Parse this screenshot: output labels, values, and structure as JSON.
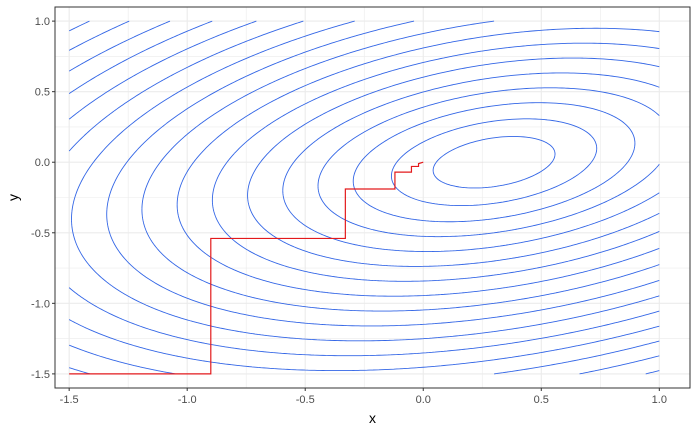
{
  "chart_data": {
    "type": "line",
    "xlabel": "x",
    "ylabel": "y",
    "xlim": [
      -1.56,
      1.13
    ],
    "ylim": [
      -1.6,
      1.1
    ],
    "x_ticks": [
      -1.5,
      -1.0,
      -0.5,
      0.0,
      0.5,
      1.0
    ],
    "y_ticks": [
      -1.5,
      -1.0,
      -0.5,
      0.0,
      0.5,
      1.0
    ],
    "x_tick_labels": [
      "-1.5",
      "-1.0",
      "-0.5",
      "0.0",
      "0.5",
      "1.0"
    ],
    "y_tick_labels": [
      "-1.5",
      "-1.0",
      "-0.5",
      "0.0",
      "0.5",
      "1.0"
    ],
    "grid": true,
    "legend": "none",
    "contour": {
      "description_fn": "f(x,y) = (x - 0.3)^2 - 0.9*(x - 0.3)*y + 2*y^2",
      "domain_x": [
        -1.5,
        1.0
      ],
      "domain_y": [
        -1.5,
        1.0
      ],
      "levels": [
        0.06,
        0.17,
        0.32,
        0.5,
        0.72,
        0.98,
        1.28,
        1.62,
        2.0,
        2.42,
        2.88,
        3.38,
        3.92,
        4.5,
        5.12,
        5.78,
        6.48,
        7.22,
        8.0,
        8.82,
        9.68
      ],
      "color": "#3366e6"
    },
    "series": [
      {
        "color": "#e31a1c",
        "x": [
          -1.5,
          -0.9,
          -0.9,
          -0.33,
          -0.33,
          -0.12,
          -0.12,
          -0.05,
          -0.05,
          -0.02,
          -0.02,
          0.0
        ],
        "y": [
          -1.5,
          -1.5,
          -0.54,
          -0.54,
          -0.19,
          -0.19,
          -0.07,
          -0.07,
          -0.03,
          -0.03,
          -0.01,
          0.0
        ]
      }
    ],
    "colors": {
      "panel_border": "#333333",
      "grid": "#ebebeb",
      "tick": "#333333"
    }
  }
}
